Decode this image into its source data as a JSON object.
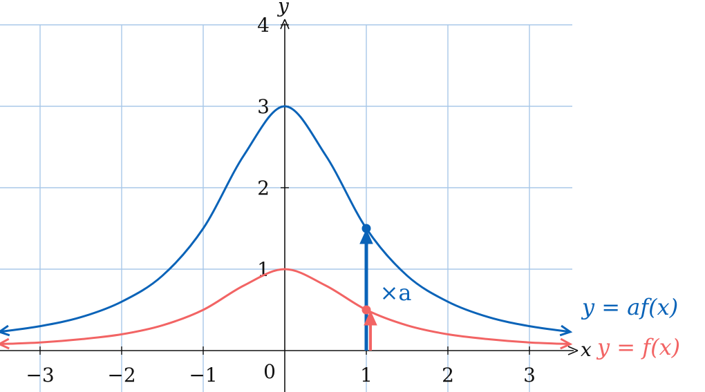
{
  "chart_data": {
    "type": "line",
    "title": "",
    "xlabel": "x",
    "ylabel": "y",
    "xlim": [
      -3.5,
      3.5
    ],
    "ylim": [
      0,
      4
    ],
    "grid": true,
    "x_ticks": [
      -3,
      -2,
      -1,
      1,
      2,
      3
    ],
    "x_tick_labels": [
      "−3",
      "−2",
      "−1",
      "1",
      "2",
      "3"
    ],
    "y_ticks": [
      1,
      2,
      3,
      4
    ],
    "y_tick_labels": [
      "1",
      "2",
      "3",
      "4"
    ],
    "origin_label": "0",
    "series": [
      {
        "name": "y = af(x)",
        "color": "#0a63b8",
        "x": [
          -3.5,
          -3,
          -2.5,
          -2,
          -1.5,
          -1,
          -0.5,
          0,
          0.5,
          1,
          1.5,
          2,
          2.5,
          3,
          3.5
        ],
        "values": [
          0.23,
          0.3,
          0.41,
          0.6,
          0.92,
          1.5,
          2.4,
          3.0,
          2.4,
          1.5,
          0.92,
          0.6,
          0.41,
          0.3,
          0.23
        ]
      },
      {
        "name": "y = f(x)",
        "color": "#f26464",
        "x": [
          -3.5,
          -3,
          -2.5,
          -2,
          -1.5,
          -1,
          -0.5,
          0,
          0.5,
          1,
          1.5,
          2,
          2.5,
          3,
          3.5
        ],
        "values": [
          0.08,
          0.1,
          0.14,
          0.2,
          0.31,
          0.5,
          0.8,
          1.0,
          0.8,
          0.5,
          0.31,
          0.2,
          0.14,
          0.1,
          0.08
        ]
      }
    ],
    "highlight_points": [
      {
        "series": "y = af(x)",
        "x": 1,
        "y": 1.5
      },
      {
        "series": "y = f(x)",
        "x": 1,
        "y": 0.5
      }
    ],
    "arrows": [
      {
        "x": 1,
        "from_y": 0,
        "to_y": 1.5,
        "color": "#0a63b8"
      },
      {
        "x": 1,
        "from_y": 0,
        "to_y": 0.5,
        "color": "#f26464"
      }
    ],
    "annotation": {
      "text": "×a",
      "x": 1.2,
      "y": 0.72,
      "color": "#0a63b8"
    },
    "labels": {
      "af": {
        "text": "y = af(x)",
        "color": "#0a63b8"
      },
      "f": {
        "text": "y = f(x)",
        "color": "#f26464"
      }
    },
    "colors": {
      "grid": "#a8c8e8",
      "axis": "#111111"
    }
  }
}
